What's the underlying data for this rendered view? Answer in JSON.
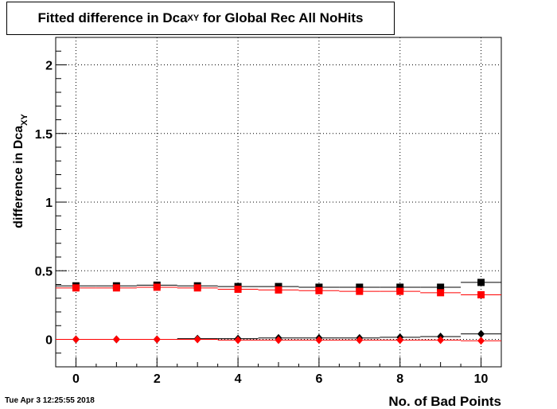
{
  "header": {
    "title_main": "Fitted difference in Dca",
    "title_sub": "XY",
    "title_rest": " for Global Rec All NoHits"
  },
  "footer": {
    "timestamp": "Tue Apr  3 12:25:55 2018"
  },
  "chart_data": {
    "type": "scatter",
    "title": "Fitted difference in DcaXY for Global Rec All NoHits",
    "xlabel": "No. of Bad Points",
    "ylabel_main": "difference in Dca",
    "ylabel_sub": "XY",
    "xlim": [
      -0.5,
      10.5
    ],
    "ylim": [
      -0.2,
      2.2
    ],
    "x_ticks": [
      0,
      2,
      4,
      6,
      8,
      10
    ],
    "y_ticks": [
      0,
      0.5,
      1,
      1.5,
      2
    ],
    "y_tick_labels": [
      "0",
      "0.5",
      "1",
      "1.5",
      "2"
    ],
    "grid": true,
    "x": [
      0,
      1,
      2,
      3,
      4,
      5,
      6,
      7,
      8,
      9,
      10
    ],
    "series": [
      {
        "marker": "square",
        "color": "#000000",
        "values": [
          0.39,
          0.39,
          0.395,
          0.39,
          0.385,
          0.385,
          0.38,
          0.38,
          0.38,
          0.38,
          0.415
        ]
      },
      {
        "marker": "square",
        "color": "#ff0000",
        "values": [
          0.375,
          0.375,
          0.38,
          0.375,
          0.365,
          0.36,
          0.355,
          0.35,
          0.35,
          0.34,
          0.325
        ]
      },
      {
        "marker": "diamond",
        "color": "#000000",
        "values": [
          0.0,
          0.0,
          0.0,
          0.005,
          0.005,
          0.01,
          0.01,
          0.01,
          0.015,
          0.02,
          0.04
        ]
      },
      {
        "marker": "diamond",
        "color": "#ff0000",
        "values": [
          0.0,
          0.0,
          0.0,
          0.0,
          -0.005,
          -0.005,
          -0.005,
          -0.005,
          -0.005,
          -0.005,
          -0.01
        ]
      }
    ]
  }
}
